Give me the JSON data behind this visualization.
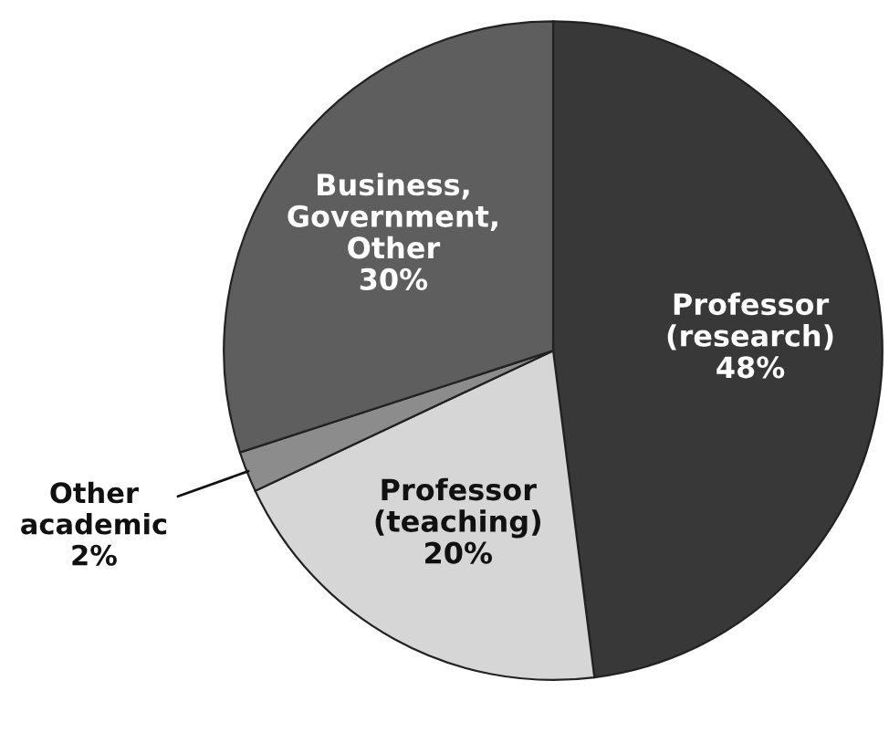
{
  "chart_data": {
    "type": "pie",
    "categories": [
      "Professor (research)",
      "Professor (teaching)",
      "Other academic",
      "Business, Government, Other"
    ],
    "values": [
      48,
      20,
      2,
      30
    ],
    "value_labels": [
      "48%",
      "20%",
      "2%",
      "30%"
    ],
    "colors": [
      "#383838",
      "#d6d6d6",
      "#8c8c8c",
      "#5e5e5e"
    ]
  }
}
